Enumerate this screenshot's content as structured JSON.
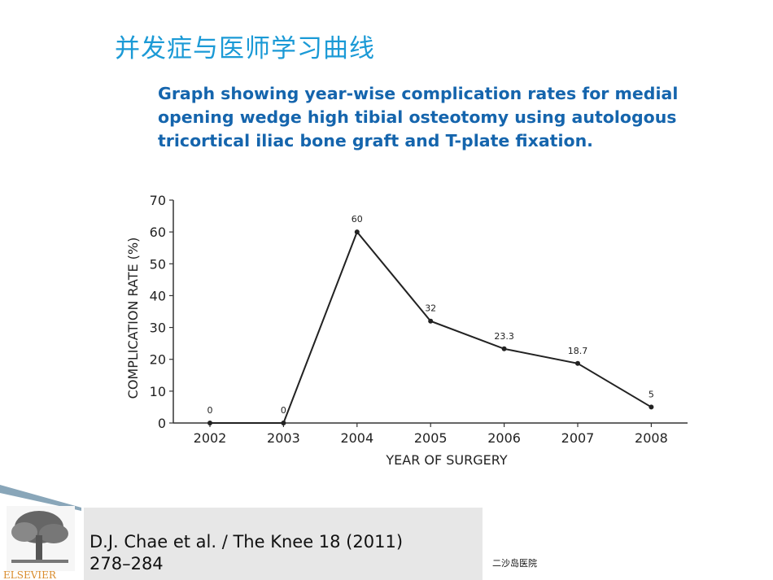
{
  "slide": {
    "title": "并发症与医师学习曲线"
  },
  "subtitle": {
    "line1": "Graph showing year-wise complication rates for medial",
    "line2": "opening wedge high tibial osteotomy using autologous",
    "line3": "tricortical iliac bone graft and T-plate fixation."
  },
  "citation": {
    "line1": "D.J. Chae et al. / The Knee 18 (2011)",
    "line2": "278–284"
  },
  "footer": {
    "note": "二沙岛医院"
  },
  "logo": {
    "text": "ELSEVIER"
  },
  "colors": {
    "title": "#1b9ad6",
    "subtitle": "#1565ad",
    "line": "#222222",
    "citation_bg": "#e7e7e7"
  },
  "chart_data": {
    "type": "line",
    "x": [
      "2002",
      "2003",
      "2004",
      "2005",
      "2006",
      "2007",
      "2008"
    ],
    "values": [
      0,
      0,
      60,
      32,
      23.3,
      18.7,
      5
    ],
    "data_labels": [
      "0",
      "0",
      "60",
      "32",
      "23.3",
      "18.7",
      "5"
    ],
    "xlabel": "YEAR OF SURGERY",
    "ylabel": "COMPLICATION RATE (%)",
    "ylim": [
      0,
      70
    ],
    "yticks": [
      0,
      10,
      20,
      30,
      40,
      50,
      60,
      70
    ],
    "grid": false
  }
}
